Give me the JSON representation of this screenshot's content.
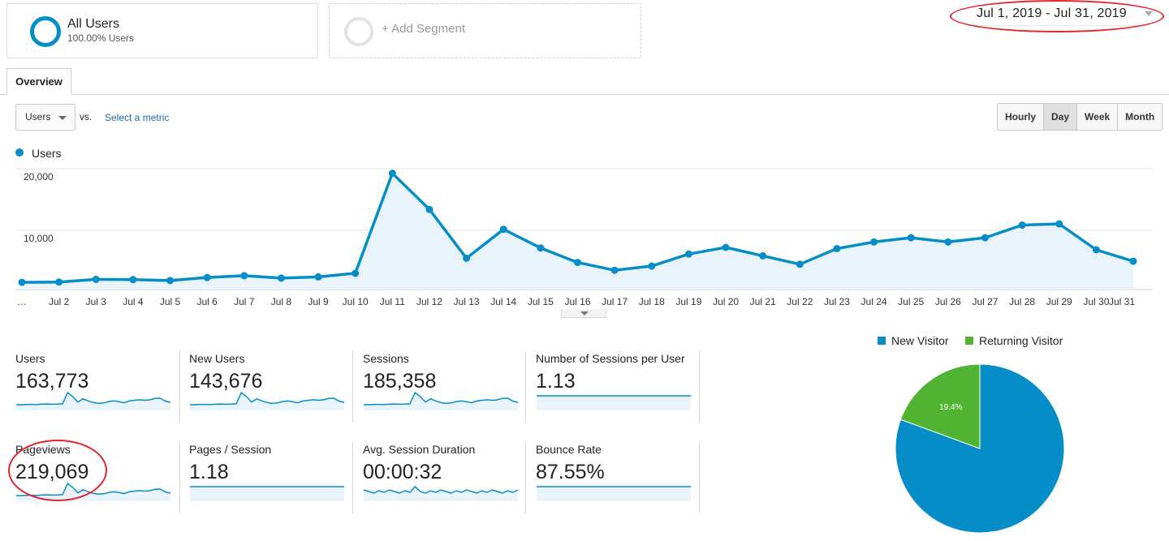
{
  "segments": {
    "active": {
      "name": "All Users",
      "subtitle": "100.00% Users"
    },
    "add_label": "+ Add Segment"
  },
  "date_range": "Jul 1, 2019 - Jul 31, 2019",
  "tabs": [
    {
      "label": "Overview"
    }
  ],
  "metric_selector": {
    "selected": "Users",
    "vs_label": "vs.",
    "select_metric_label": "Select a metric"
  },
  "granularity": {
    "options": [
      "Hourly",
      "Day",
      "Week",
      "Month"
    ],
    "active": "Day"
  },
  "colors": {
    "primary": "#058dc7",
    "secondary": "#50b432",
    "annotation": "#e0272e",
    "area_fill": "#e8f3fb"
  },
  "chart_data": {
    "type": "area",
    "series": [
      {
        "name": "Users",
        "values": [
          1200,
          1250,
          1700,
          1650,
          1500,
          2000,
          2300,
          1900,
          2100,
          2700,
          19300,
          13300,
          5200,
          10000,
          6900,
          4500,
          3200,
          3900,
          5900,
          7000,
          5600,
          4200,
          6800,
          7900,
          8600,
          7900,
          8600,
          10700,
          10900,
          6600,
          4700
        ]
      }
    ],
    "x": [
      "…",
      "Jul 2",
      "Jul 3",
      "Jul 4",
      "Jul 5",
      "Jul 6",
      "Jul 7",
      "Jul 8",
      "Jul 9",
      "Jul 10",
      "Jul 11",
      "Jul 12",
      "Jul 13",
      "Jul 14",
      "Jul 15",
      "Jul 16",
      "Jul 17",
      "Jul 18",
      "Jul 19",
      "Jul 20",
      "Jul 21",
      "Jul 22",
      "Jul 23",
      "Jul 24",
      "Jul 25",
      "Jul 26",
      "Jul 27",
      "Jul 28",
      "Jul 29",
      "Jul 30",
      "Jul 31"
    ],
    "y_ticks": [
      "20,000",
      "10,000"
    ],
    "ylim": [
      0,
      20000
    ],
    "grid": true,
    "legend": "top-left"
  },
  "scorecards": [
    {
      "label": "Users",
      "value": "163,773"
    },
    {
      "label": "New Users",
      "value": "143,676"
    },
    {
      "label": "Sessions",
      "value": "185,358"
    },
    {
      "label": "Number of Sessions per User",
      "value": "1.13"
    },
    {
      "label": "Pageviews",
      "value": "219,069"
    },
    {
      "label": "Pages / Session",
      "value": "1.18"
    },
    {
      "label": "Avg. Session Duration",
      "value": "00:00:32"
    },
    {
      "label": "Bounce Rate",
      "value": "87.55%"
    }
  ],
  "pie": {
    "type": "pie",
    "legend": [
      {
        "name": "New Visitor",
        "color": "#058dc7"
      },
      {
        "name": "Returning Visitor",
        "color": "#50b432"
      }
    ],
    "values": [
      80.6,
      19.4
    ],
    "labels": [
      "80.6%",
      "19.4%"
    ]
  }
}
